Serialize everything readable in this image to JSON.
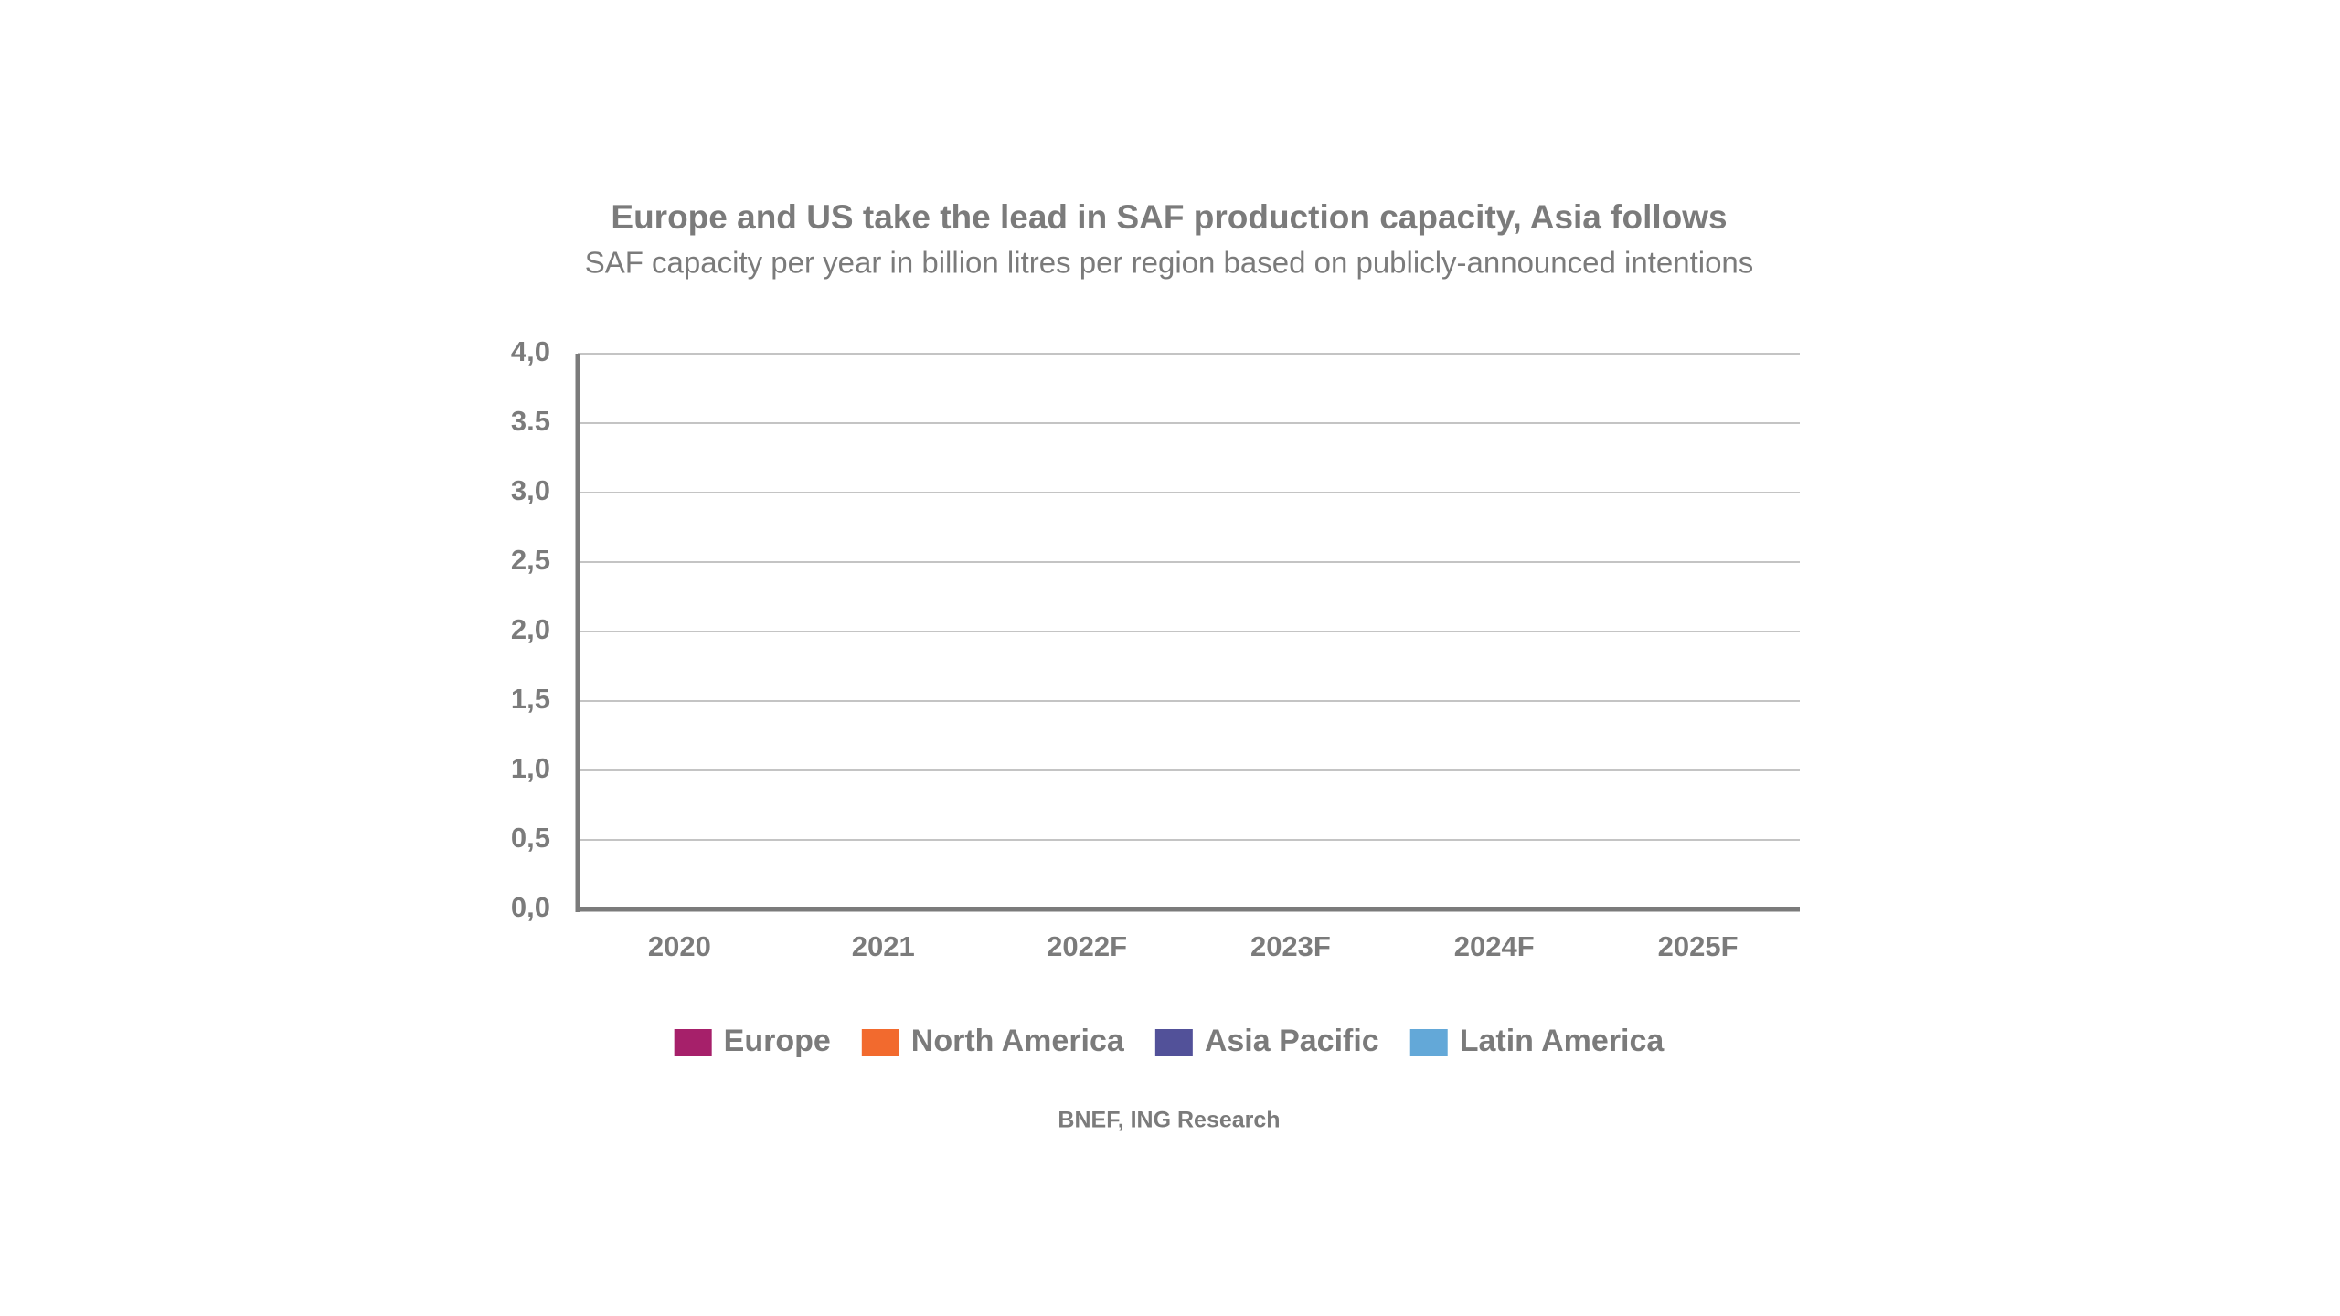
{
  "chart_data": {
    "type": "bar",
    "stacked": true,
    "title": "Europe and US take the lead in SAF production capacity, Asia follows",
    "subtitle": "SAF capacity per year in billion litres per region based on publicly-announced intentions",
    "source": "BNEF, ING Research",
    "categories": [
      "2020",
      "2021",
      "2022F",
      "2023F",
      "2024F",
      "2025F"
    ],
    "series": [
      {
        "name": "Europe",
        "color": "#a6206a",
        "values": [
          null,
          null,
          null,
          null,
          null,
          null
        ]
      },
      {
        "name": "North America",
        "color": "#f26a2e",
        "values": [
          null,
          null,
          null,
          null,
          null,
          null
        ]
      },
      {
        "name": "Asia Pacific",
        "color": "#525199",
        "values": [
          null,
          null,
          null,
          null,
          null,
          null
        ]
      },
      {
        "name": "Latin America",
        "color": "#63a8d8",
        "values": [
          null,
          null,
          null,
          null,
          null,
          null
        ]
      }
    ],
    "ylim": [
      0,
      4
    ],
    "yticks": [
      {
        "value": 0,
        "label": "0,0"
      },
      {
        "value": 0.5,
        "label": "0,5"
      },
      {
        "value": 1,
        "label": "1,0"
      },
      {
        "value": 1.5,
        "label": "1,5"
      },
      {
        "value": 2,
        "label": "2,0"
      },
      {
        "value": 2.5,
        "label": "2,5"
      },
      {
        "value": 3,
        "label": "3,0"
      },
      3.5,
      {
        "value": 4,
        "label": "4,0"
      }
    ],
    "grid": true,
    "legend": "bottom"
  }
}
